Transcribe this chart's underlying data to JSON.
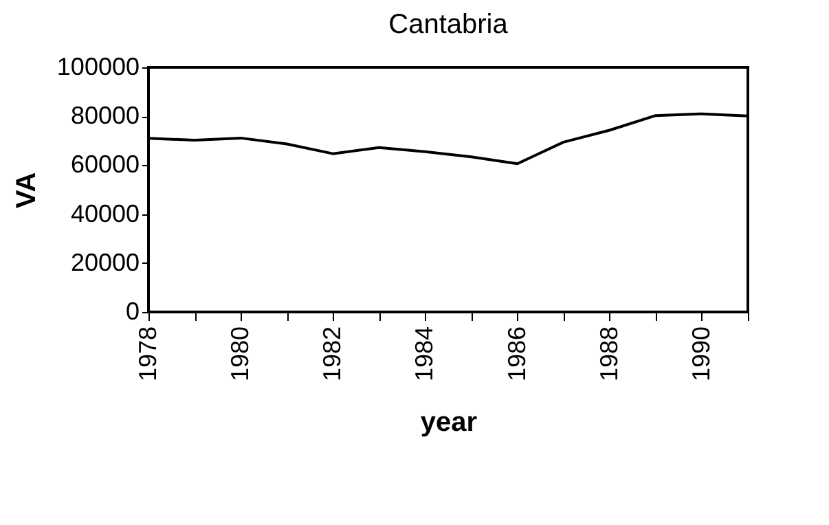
{
  "chart_data": {
    "type": "line",
    "title": "Cantabria",
    "xlabel": "year",
    "ylabel": "VA",
    "x": [
      1978,
      1979,
      1980,
      1981,
      1982,
      1983,
      1984,
      1985,
      1986,
      1987,
      1988,
      1989,
      1990,
      1991
    ],
    "series": [
      {
        "color": "#000000",
        "values": [
          71000,
          70200,
          71100,
          68700,
          64700,
          67200,
          65500,
          63400,
          60600,
          69400,
          74300,
          80300,
          81000,
          80100
        ]
      }
    ],
    "xlim": [
      1978,
      1991
    ],
    "xticks": [
      1978,
      {
        "value": 1979,
        "label": null
      },
      1980,
      {
        "value": 1981,
        "label": null
      },
      1982,
      {
        "value": 1983,
        "label": null
      },
      1984,
      {
        "value": 1985,
        "label": null
      },
      1986,
      {
        "value": 1987,
        "label": null
      },
      1988,
      {
        "value": 1989,
        "label": null
      },
      1990,
      {
        "value": 1991,
        "label": null
      }
    ],
    "ylim": [
      0,
      100000
    ],
    "yticks": [
      0,
      20000,
      40000,
      60000,
      80000,
      100000
    ],
    "grid": false,
    "marker": "none",
    "line_style": "solid"
  }
}
